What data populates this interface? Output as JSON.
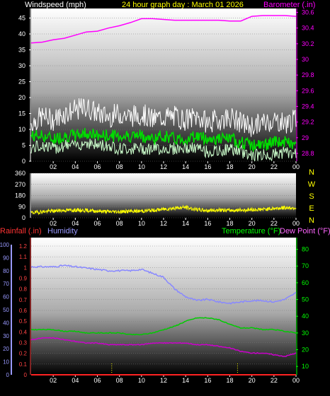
{
  "header": {
    "wind_label": "Windspeed (mph)",
    "title": "24 hour graph day : March 01 2026",
    "baro_label": "Barometer (.in)"
  },
  "colors": {
    "wind_label": "#ffffff",
    "title": "#ffff00",
    "barometer": "#ff00ff",
    "gust": "#ffffff",
    "avg": "#00dd00",
    "direction": "#ffff00",
    "rain": "#ff2222",
    "humidity": "#8888ff",
    "temperature": "#00cc00",
    "dewpoint": "#cc00cc",
    "compass": "#ffff00",
    "wind_axis": "#ffffff",
    "rain_axis_label": "#ff3333",
    "rain_axis": "#ff4444",
    "humidity_axis": "#9999ff",
    "temp_axis": "#00ff00"
  },
  "chart_data": [
    {
      "type": "line",
      "id": "wind_baro",
      "x_ticks": [
        "02",
        "04",
        "06",
        "08",
        "10",
        "12",
        "14",
        "16",
        "18",
        "20",
        "22",
        "00"
      ],
      "y_left_label": "Windspeed (mph)",
      "y_left_ticks": [
        0,
        5,
        10,
        15,
        20,
        25,
        30,
        35,
        40,
        45
      ],
      "ylim_left": [
        0,
        48
      ],
      "y_right_label": "Barometer (.in)",
      "y_right_ticks": [
        "28.8",
        "29",
        "29.2",
        "29.4",
        "29.6",
        "29.8",
        "30",
        "30.2",
        "30.4",
        "30.6"
      ],
      "ylim_right": [
        28.7,
        30.65
      ],
      "series": [
        {
          "name": "Barometer",
          "axis": "right",
          "x": [
            0,
            1,
            2,
            3,
            4,
            5,
            6,
            7,
            8,
            9,
            10,
            11,
            12,
            13,
            14,
            15,
            16,
            17,
            18,
            19,
            20,
            21,
            22,
            23,
            24
          ],
          "values": [
            30.21,
            30.22,
            30.25,
            30.27,
            30.31,
            30.35,
            30.36,
            30.4,
            30.43,
            30.47,
            30.52,
            30.52,
            30.51,
            30.5,
            30.5,
            30.5,
            30.5,
            30.5,
            30.49,
            30.49,
            30.55,
            30.56,
            30.56,
            30.56,
            30.55
          ]
        },
        {
          "name": "Wind gust",
          "axis": "left",
          "x": [
            0,
            1,
            2,
            3,
            4,
            5,
            6,
            7,
            8,
            9,
            10,
            11,
            12,
            13,
            14,
            15,
            16,
            17,
            18,
            19,
            20,
            21,
            22,
            23,
            24
          ],
          "values": [
            12,
            14,
            13,
            15,
            16,
            17,
            15,
            14,
            15,
            14,
            15,
            13,
            14,
            14,
            13,
            14,
            12,
            13,
            14,
            12,
            11,
            12,
            13,
            12,
            13
          ]
        },
        {
          "name": "Wind average",
          "axis": "left",
          "x": [
            0,
            1,
            2,
            3,
            4,
            5,
            6,
            7,
            8,
            9,
            10,
            11,
            12,
            13,
            14,
            15,
            16,
            17,
            18,
            19,
            20,
            21,
            22,
            23,
            24
          ],
          "values": [
            8,
            8,
            7,
            8,
            8,
            9,
            8,
            8,
            8,
            8,
            8,
            7,
            8,
            7,
            7,
            8,
            7,
            7,
            7,
            6,
            5,
            5,
            6,
            6,
            5
          ]
        },
        {
          "name": "Wind low",
          "axis": "left",
          "x": [
            0,
            1,
            2,
            3,
            4,
            5,
            6,
            7,
            8,
            9,
            10,
            11,
            12,
            13,
            14,
            15,
            16,
            17,
            18,
            19,
            20,
            21,
            22,
            23,
            24
          ],
          "values": [
            4,
            5,
            4,
            5,
            5,
            6,
            5,
            5,
            4,
            4,
            4,
            4,
            4,
            4,
            4,
            4,
            3,
            3,
            4,
            3,
            2,
            2,
            2,
            3,
            2
          ]
        }
      ]
    },
    {
      "type": "line",
      "id": "wind_direction",
      "x_ticks": [
        "02",
        "04",
        "06",
        "08",
        "10",
        "12",
        "14",
        "16",
        "18",
        "20",
        "22",
        "00"
      ],
      "y_ticks": [
        0,
        90,
        180,
        270,
        360
      ],
      "ylim": [
        0,
        360
      ],
      "compass": [
        "N",
        "W",
        "S",
        "E",
        "N"
      ],
      "series": [
        {
          "name": "Direction",
          "x": [
            0,
            1,
            2,
            3,
            4,
            5,
            6,
            7,
            8,
            9,
            10,
            11,
            12,
            13,
            14,
            15,
            16,
            17,
            18,
            19,
            20,
            21,
            22,
            23,
            24
          ],
          "values": [
            40,
            50,
            55,
            60,
            62,
            60,
            55,
            50,
            50,
            52,
            55,
            60,
            70,
            78,
            85,
            65,
            60,
            62,
            60,
            62,
            65,
            68,
            75,
            82,
            80
          ]
        }
      ]
    },
    {
      "type": "line",
      "id": "rain_humidity_temp",
      "x_ticks": [
        "02",
        "04",
        "06",
        "08",
        "10",
        "12",
        "14",
        "16",
        "18",
        "20",
        "22",
        "00"
      ],
      "labels": {
        "rain": "Rainfall (.in)",
        "humidity": "Humidity",
        "temperature": "Temperature (°F)",
        "dewpoint": "Dew Point (°F)"
      },
      "y_rain_ticks": [
        "0",
        "0.1",
        "0.2",
        "0.3",
        "0.4",
        "0.5",
        "0.6",
        "0.7",
        "0.8",
        "0.9",
        "1",
        "1.1",
        "1.2"
      ],
      "ylim_rain": [
        0,
        1.2
      ],
      "y_humidity_ticks": [
        0,
        10,
        20,
        30,
        40,
        50,
        60,
        70,
        80,
        90,
        100
      ],
      "ylim_humidity": [
        0,
        100
      ],
      "y_temp_ticks": [
        10,
        20,
        30,
        40,
        50,
        60,
        70,
        80
      ],
      "ylim_temp": [
        5,
        87
      ],
      "series": [
        {
          "name": "Humidity",
          "axis": "humidity",
          "x": [
            0,
            1,
            2,
            3,
            4,
            5,
            6,
            7,
            8,
            9,
            10,
            11,
            12,
            13,
            14,
            15,
            16,
            17,
            18,
            19,
            20,
            21,
            22,
            23,
            24
          ],
          "values": [
            83,
            83,
            83,
            84,
            83,
            82,
            81,
            80,
            80,
            80,
            81,
            78,
            75,
            66,
            60,
            57,
            58,
            56,
            55,
            56,
            57,
            57,
            56,
            58,
            63
          ]
        },
        {
          "name": "Temperature",
          "axis": "temp",
          "x": [
            0,
            1,
            2,
            3,
            4,
            5,
            6,
            7,
            8,
            9,
            10,
            11,
            12,
            13,
            14,
            15,
            16,
            17,
            18,
            19,
            20,
            21,
            22,
            23,
            24
          ],
          "values": [
            32,
            32,
            32,
            31,
            31,
            30,
            30,
            30,
            30,
            29,
            29,
            30,
            32,
            34,
            37,
            39,
            39,
            38,
            35,
            33,
            33,
            32,
            32,
            31,
            30
          ]
        },
        {
          "name": "Dew Point",
          "axis": "temp",
          "x": [
            0,
            1,
            2,
            3,
            4,
            5,
            6,
            7,
            8,
            9,
            10,
            11,
            12,
            13,
            14,
            15,
            16,
            17,
            18,
            19,
            20,
            21,
            22,
            23,
            24
          ],
          "values": [
            26,
            27,
            27,
            26,
            25,
            24,
            24,
            23,
            23,
            23,
            23,
            24,
            24,
            24,
            24,
            23,
            23,
            22,
            21,
            19,
            18,
            18,
            17,
            16,
            18
          ]
        },
        {
          "name": "Rainfall",
          "axis": "rain",
          "x": [
            0,
            24
          ],
          "values": [
            0,
            0
          ]
        }
      ]
    }
  ]
}
